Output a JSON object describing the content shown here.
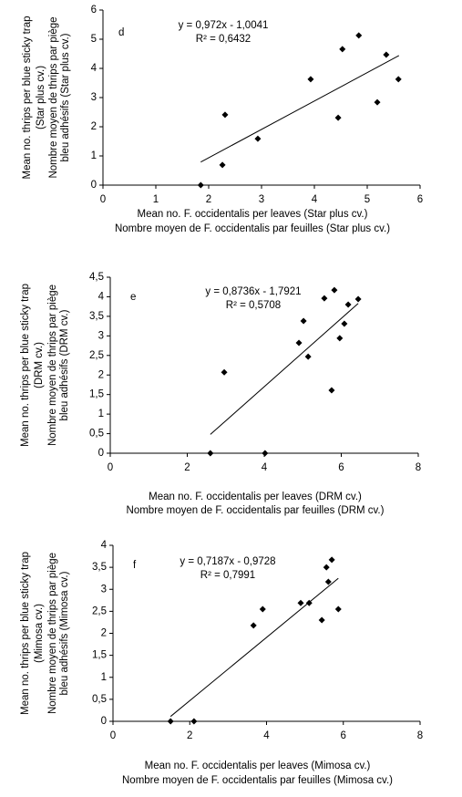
{
  "chart_data": [
    {
      "type": "scatter",
      "label": "d",
      "annotations": [
        "y = 0,972x - 1,0041",
        "R² = 0,6432"
      ],
      "ylabel": [
        "Mean no. thrips per blue sticky trap",
        "(Star plus cv.)",
        "Nombre moyen de thrips par piège",
        "bleu adhésifs (Star plus cv.)"
      ],
      "xlabel": [
        "Mean no. F. occidentalis per leaves (Star plus cv.)",
        "Nombre moyen de F. occidentalis par feuilles (Star plus cv.)"
      ],
      "x": [
        1.85,
        2.26,
        2.31,
        2.93,
        3.93,
        4.45,
        4.53,
        4.84,
        5.19,
        5.36,
        5.59
      ],
      "values": [
        0,
        0.69,
        2.41,
        1.59,
        3.63,
        2.31,
        4.66,
        5.13,
        2.84,
        4.47,
        3.63
      ],
      "color": "#000000",
      "trendline": {
        "x": [
          1.85,
          5.6
        ],
        "values": [
          0.79,
          4.44
        ]
      },
      "xlim": [
        0,
        6
      ],
      "xticks": [
        0,
        1,
        2,
        3,
        4,
        5,
        6
      ],
      "ylim": [
        0,
        6
      ],
      "yticks": [
        0,
        1,
        2,
        3,
        4,
        5,
        6
      ]
    },
    {
      "type": "scatter",
      "label": "e",
      "annotations": [
        "y = 0,8736x - 1,7921",
        "R² = 0,5708"
      ],
      "ylabel": [
        "Mean no. thrips per blue sticky trap",
        "(DRM cv.)",
        "Nombre moyen de thrips par piège",
        "bleu adhésifs (DRM cv.)"
      ],
      "xlabel": [
        "Mean no. F. occidentalis per leaves (DRM cv.)",
        "Nombre moyen de F. occidentalis par feuilles (DRM cv.)"
      ],
      "x": [
        2.6,
        2.96,
        4.02,
        4.9,
        5.02,
        5.14,
        5.56,
        5.75,
        5.82,
        5.96,
        6.08,
        6.18,
        6.44
      ],
      "values": [
        0,
        2.07,
        0,
        2.82,
        3.38,
        2.47,
        3.96,
        1.61,
        4.17,
        2.94,
        3.31,
        3.8,
        3.94
      ],
      "color": "#000000",
      "trendline": {
        "x": [
          2.6,
          6.44
        ],
        "values": [
          0.48,
          3.83
        ]
      },
      "xlim": [
        0,
        8
      ],
      "xticks": [
        0,
        2,
        4,
        6,
        8
      ],
      "ylim": [
        0,
        4.5
      ],
      "yticks": [
        0,
        {
          "value": 0.5,
          "label": "0,5"
        },
        1,
        {
          "value": 1.5,
          "label": "1,5"
        },
        2,
        {
          "value": 2.5,
          "label": "2,5"
        },
        3,
        {
          "value": 3.5,
          "label": "3,5"
        },
        4,
        {
          "value": 4.5,
          "label": "4,5"
        }
      ]
    },
    {
      "type": "scatter",
      "label": "f",
      "annotations": [
        "y = 0,7187x - 0,9728",
        "R² = 0,7991"
      ],
      "ylabel": [
        "Mean no. thrips per blue sticky trap",
        "(Mimosa cv.)",
        "Nombre moyen de thrips par piège",
        "bleu adhésifs (Mimosa cv.)"
      ],
      "xlabel": [
        "Mean no. F. occidentalis per leaves (Mimosa cv.)",
        "Nombre moyen de F. occidentalis par feuilles (Mimosa cv.)"
      ],
      "x": [
        1.5,
        2.11,
        3.66,
        3.9,
        4.89,
        5.11,
        5.44,
        5.56,
        5.61,
        5.7,
        5.87
      ],
      "values": [
        0,
        0,
        2.18,
        2.55,
        2.69,
        2.69,
        2.3,
        3.5,
        3.17,
        3.67,
        2.55
      ],
      "color": "#000000",
      "trendline": {
        "x": [
          1.5,
          5.87
        ],
        "values": [
          0.11,
          3.25
        ]
      },
      "xlim": [
        0,
        8
      ],
      "xticks": [
        0,
        2,
        4,
        6,
        8
      ],
      "ylim": [
        0,
        4
      ],
      "yticks": [
        0,
        {
          "value": 0.5,
          "label": "0,5"
        },
        1,
        {
          "value": 1.5,
          "label": "1,5"
        },
        2,
        {
          "value": 2.5,
          "label": "2,5"
        },
        3,
        {
          "value": 3.5,
          "label": "3,5"
        },
        4
      ]
    }
  ]
}
